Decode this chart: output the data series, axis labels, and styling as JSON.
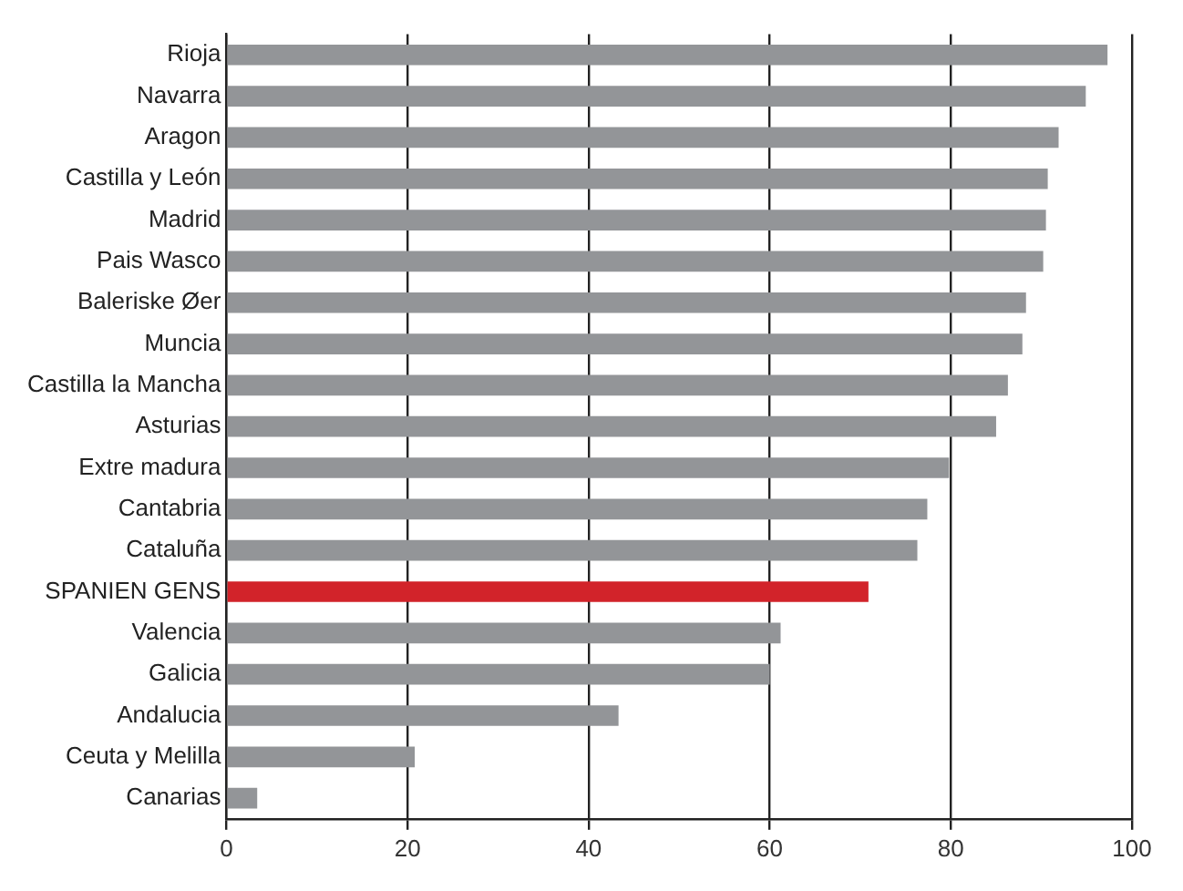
{
  "chart_data": {
    "type": "bar",
    "orientation": "horizontal",
    "categories": [
      "Rioja",
      "Navarra",
      "Aragon",
      "Castilla y León",
      "Madrid",
      "Pais Wasco",
      "Baleriske Øer",
      "Muncia",
      "Castilla la Mancha",
      "Asturias",
      "Extre madura",
      "Cantabria",
      "Cataluña",
      "SPANIEN GENS",
      "Valencia",
      "Galicia",
      "Andalucia",
      "Ceuta y Melilla",
      "Canarias"
    ],
    "values": [
      97.3,
      94.9,
      91.9,
      90.7,
      90.5,
      90.2,
      88.3,
      87.9,
      86.3,
      85.0,
      79.8,
      77.4,
      76.3,
      70.9,
      61.2,
      60.0,
      43.3,
      20.8,
      3.4
    ],
    "colors": [
      "#939598",
      "#939598",
      "#939598",
      "#939598",
      "#939598",
      "#939598",
      "#939598",
      "#939598",
      "#939598",
      "#939598",
      "#939598",
      "#939598",
      "#939598",
      "#d2232a",
      "#939598",
      "#939598",
      "#939598",
      "#939598",
      "#939598"
    ],
    "xlim": [
      0,
      100
    ],
    "xticks": [
      0,
      20,
      40,
      60,
      80,
      100
    ],
    "grid": "x",
    "legend": false
  }
}
